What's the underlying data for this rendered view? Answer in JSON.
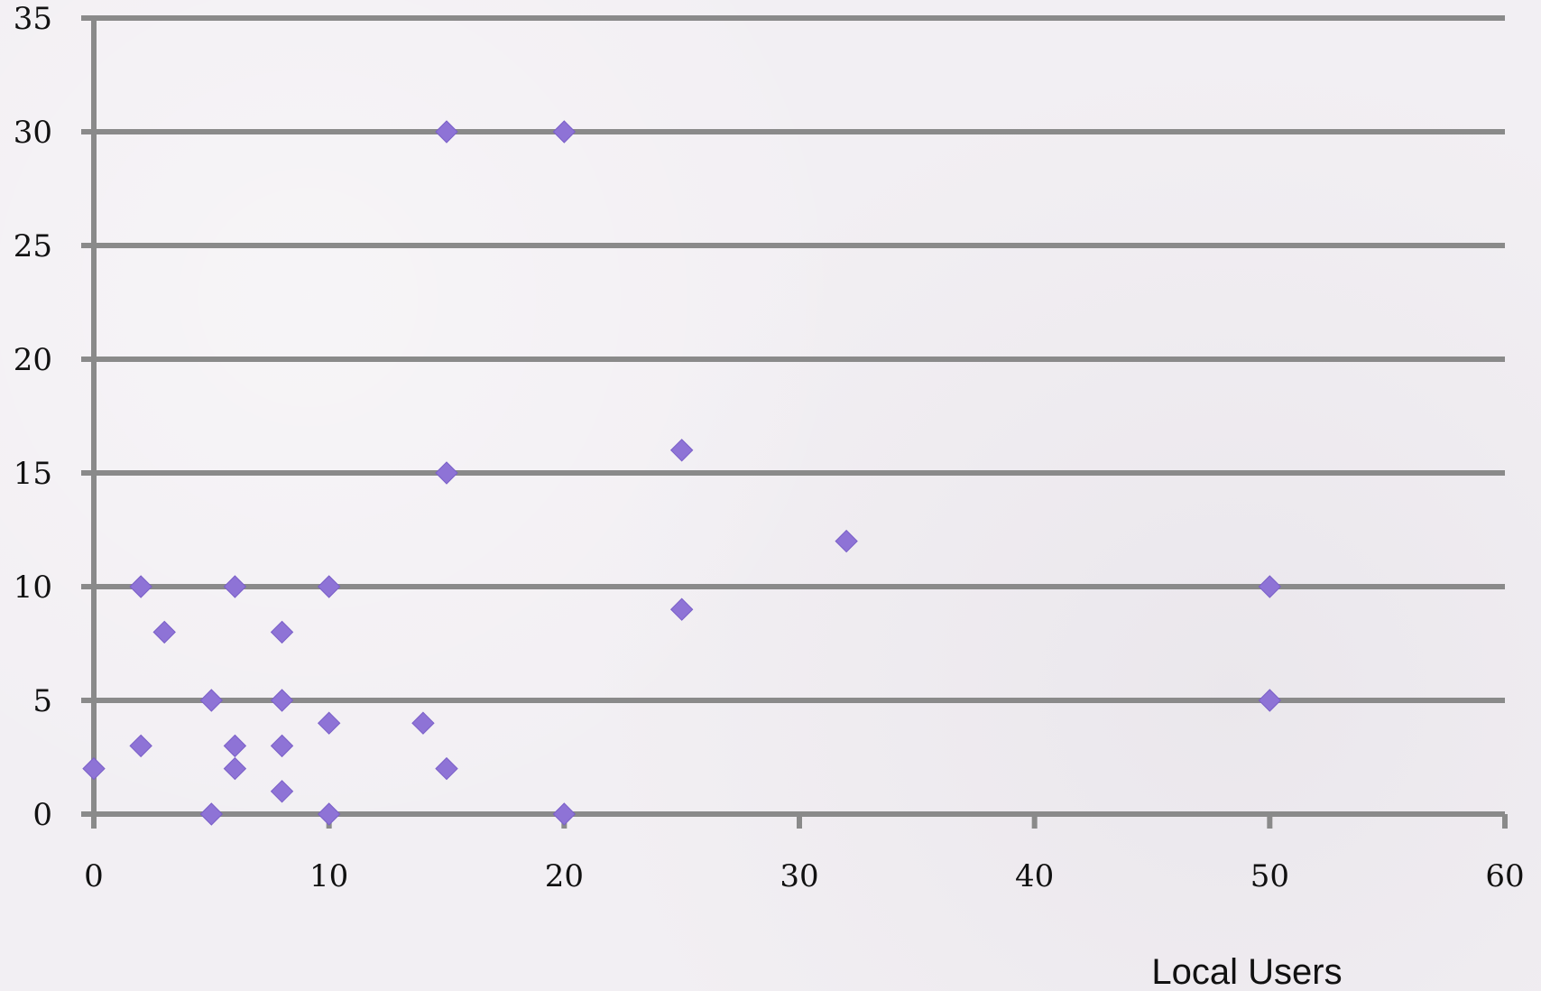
{
  "chart_data": {
    "type": "scatter",
    "title": "",
    "xlabel": "Local Users",
    "ylabel": "",
    "xlim": [
      0,
      60
    ],
    "ylim": [
      0,
      35
    ],
    "x_ticks": [
      0,
      10,
      20,
      30,
      40,
      50,
      60
    ],
    "y_ticks": [
      0,
      5,
      10,
      15,
      20,
      25,
      30,
      35
    ],
    "x_tick_labels": [
      "0",
      "10",
      "20",
      "30",
      "40",
      "50",
      "60"
    ],
    "y_tick_labels": [
      "0",
      "5",
      "10",
      "15",
      "20",
      "25",
      "30",
      "35"
    ],
    "grid": "horizontal",
    "marker": "diamond",
    "series": [
      {
        "color": "#8e73d6",
        "points": [
          {
            "x": 0,
            "y": 2
          },
          {
            "x": 2,
            "y": 10
          },
          {
            "x": 2,
            "y": 3
          },
          {
            "x": 3,
            "y": 8
          },
          {
            "x": 5,
            "y": 5
          },
          {
            "x": 5,
            "y": 0
          },
          {
            "x": 6,
            "y": 10
          },
          {
            "x": 6,
            "y": 3
          },
          {
            "x": 6,
            "y": 2
          },
          {
            "x": 8,
            "y": 8
          },
          {
            "x": 8,
            "y": 5
          },
          {
            "x": 8,
            "y": 3
          },
          {
            "x": 8,
            "y": 1
          },
          {
            "x": 10,
            "y": 10
          },
          {
            "x": 10,
            "y": 4
          },
          {
            "x": 10,
            "y": 0
          },
          {
            "x": 14,
            "y": 4
          },
          {
            "x": 15,
            "y": 30
          },
          {
            "x": 15,
            "y": 15
          },
          {
            "x": 15,
            "y": 2
          },
          {
            "x": 20,
            "y": 30
          },
          {
            "x": 20,
            "y": 0
          },
          {
            "x": 25,
            "y": 16
          },
          {
            "x": 25,
            "y": 9
          },
          {
            "x": 32,
            "y": 12
          },
          {
            "x": 50,
            "y": 10
          },
          {
            "x": 50,
            "y": 5
          }
        ]
      }
    ]
  },
  "colors": {
    "grid": "#8a8a8a",
    "axis": "#8a8a8a",
    "marker": "#8e73d6",
    "background": "#f2eff3"
  }
}
